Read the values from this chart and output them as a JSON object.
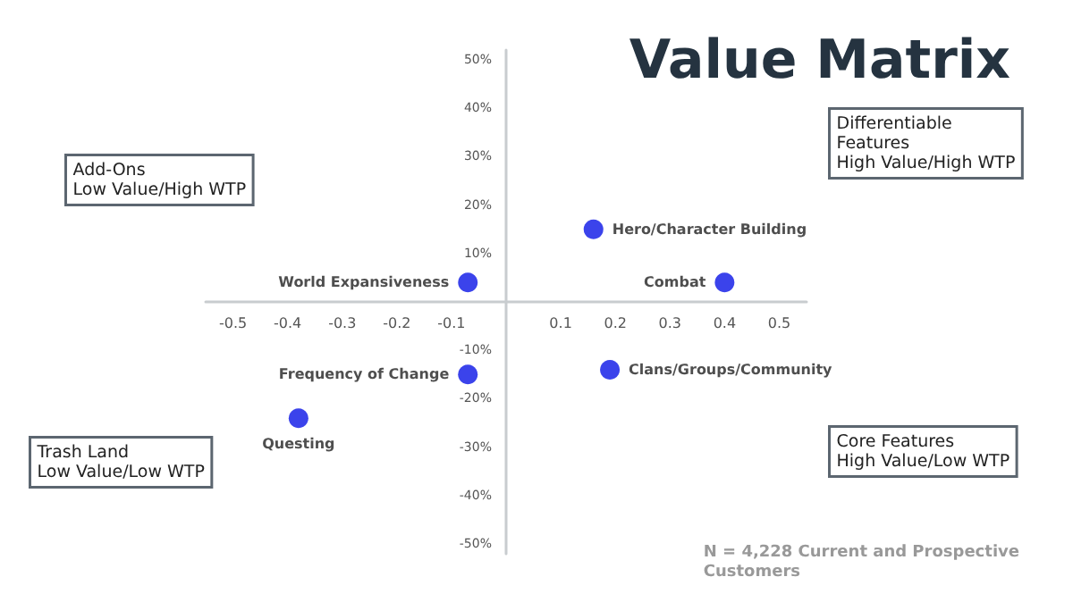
{
  "chart_data": {
    "type": "scatter",
    "title": "Value Matrix",
    "xlim": [
      -0.55,
      0.55
    ],
    "xticks": [
      -0.5,
      -0.4,
      -0.3,
      -0.2,
      -0.1,
      0.1,
      0.2,
      0.3,
      0.4,
      0.5
    ],
    "ylim": [
      -52,
      52
    ],
    "yticks": [
      {
        "value": 50,
        "label": "50%"
      },
      {
        "value": 40,
        "label": "40%"
      },
      {
        "value": 30,
        "label": "30%"
      },
      {
        "value": 20,
        "label": "20%"
      },
      {
        "value": 10,
        "label": "10%"
      },
      {
        "value": -10,
        "label": "-10%"
      },
      {
        "value": -20,
        "label": "-20%"
      },
      {
        "value": -30,
        "label": "-30%"
      },
      {
        "value": -40,
        "label": "-40%"
      },
      {
        "value": -50,
        "label": "-50%"
      }
    ],
    "grid": false,
    "legend": false,
    "marker": "circle",
    "series": [
      {
        "name": "Hero/Character Building",
        "color": "#0a14e6",
        "x": [
          0.16
        ],
        "values": [
          15
        ]
      },
      {
        "name": "Combat",
        "color": "#0a14e6",
        "x": [
          0.4
        ],
        "values": [
          4
        ]
      },
      {
        "name": "World Expansiveness",
        "color": "#0a14e6",
        "x": [
          -0.07
        ],
        "values": [
          4
        ]
      },
      {
        "name": "Frequency of Change",
        "color": "#0a14e6",
        "x": [
          -0.07
        ],
        "values": [
          -15
        ]
      },
      {
        "name": "Clans/Groups/Community",
        "color": "#0a14e6",
        "x": [
          0.19
        ],
        "values": [
          -14
        ]
      },
      {
        "name": "Questing",
        "color": "#0a14e6",
        "x": [
          -0.38
        ],
        "values": [
          -24
        ]
      }
    ],
    "annotations": [
      "Add-Ons\nLow Value/High WTP",
      "Differentiable\nFeatures\nHigh Value/High WTP",
      "Trash Land\nLow Value/Low WTP",
      "Core Features\nHigh Value/Low WTP",
      "N = 4,228 Current and Prospective\nCustomers"
    ]
  }
}
